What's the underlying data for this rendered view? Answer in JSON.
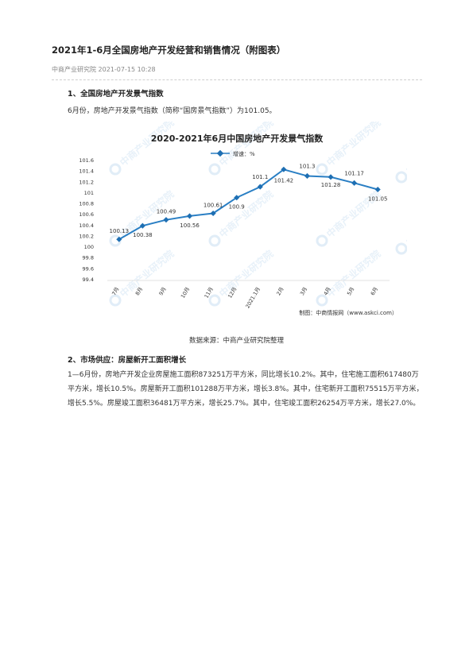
{
  "article": {
    "title": "2021年1-6月全国房地产开发经营和销售情况（附图表）",
    "meta": "中商产业研究院 2021-07-15 10:28",
    "section1": {
      "heading": "1、全国房地产开发景气指数",
      "text": "6月份，房地产开发景气指数（简称“国房景气指数”）为101.05。"
    },
    "caption": "数据来源：中商产业研究院整理",
    "section2": {
      "heading": "2、市场供应：房屋新开工面积增长",
      "text": "1—6月份，房地产开发企业房屋施工面积873251万平方米，同比增长10.2%。其中，住宅施工面积617480万平方米，增长10.5%。房屋新开工面积101288万平方米，增长3.8%。其中，住宅新开工面积75515万平方米，增长5.5%。房屋竣工面积36481万平方米，增长25.7%。其中，住宅竣工面积26254万平方米，增长27.0%。"
    }
  },
  "watermark": "中商产业研究院",
  "chart_data": {
    "type": "line",
    "title": "2020-2021年6月中国房地产开发景气指数",
    "categories": [
      "7月",
      "8月",
      "9月",
      "10月",
      "11月",
      "12月",
      "2021.1月",
      "2月",
      "3月",
      "4月",
      "5月",
      "6月"
    ],
    "series": [
      {
        "name": "增速：%",
        "values": [
          100.13,
          100.38,
          100.49,
          100.56,
          100.61,
          100.9,
          101.1,
          101.42,
          101.3,
          101.28,
          101.17,
          101.05
        ]
      }
    ],
    "data_labels": [
      "100.13",
      "100.38",
      "100.49",
      "100.56",
      "100.61",
      "100.9",
      "101.1",
      "101.42",
      "101.3",
      "101.28",
      "101.17",
      "101.05"
    ],
    "y_ticks": [
      "101.6",
      "101.4",
      "101.2",
      "101",
      "100.8",
      "100.6",
      "100.4",
      "100.2",
      "100",
      "99.8",
      "99.6",
      "99.4"
    ],
    "ylim": [
      99.4,
      101.6
    ],
    "grid": false,
    "legend": "top-center",
    "source_note": "制图：中商情报网（www.askci.com）",
    "colors": {
      "line": "#2a7fc4",
      "marker": "#1e6fb3",
      "text": "#333333"
    }
  }
}
